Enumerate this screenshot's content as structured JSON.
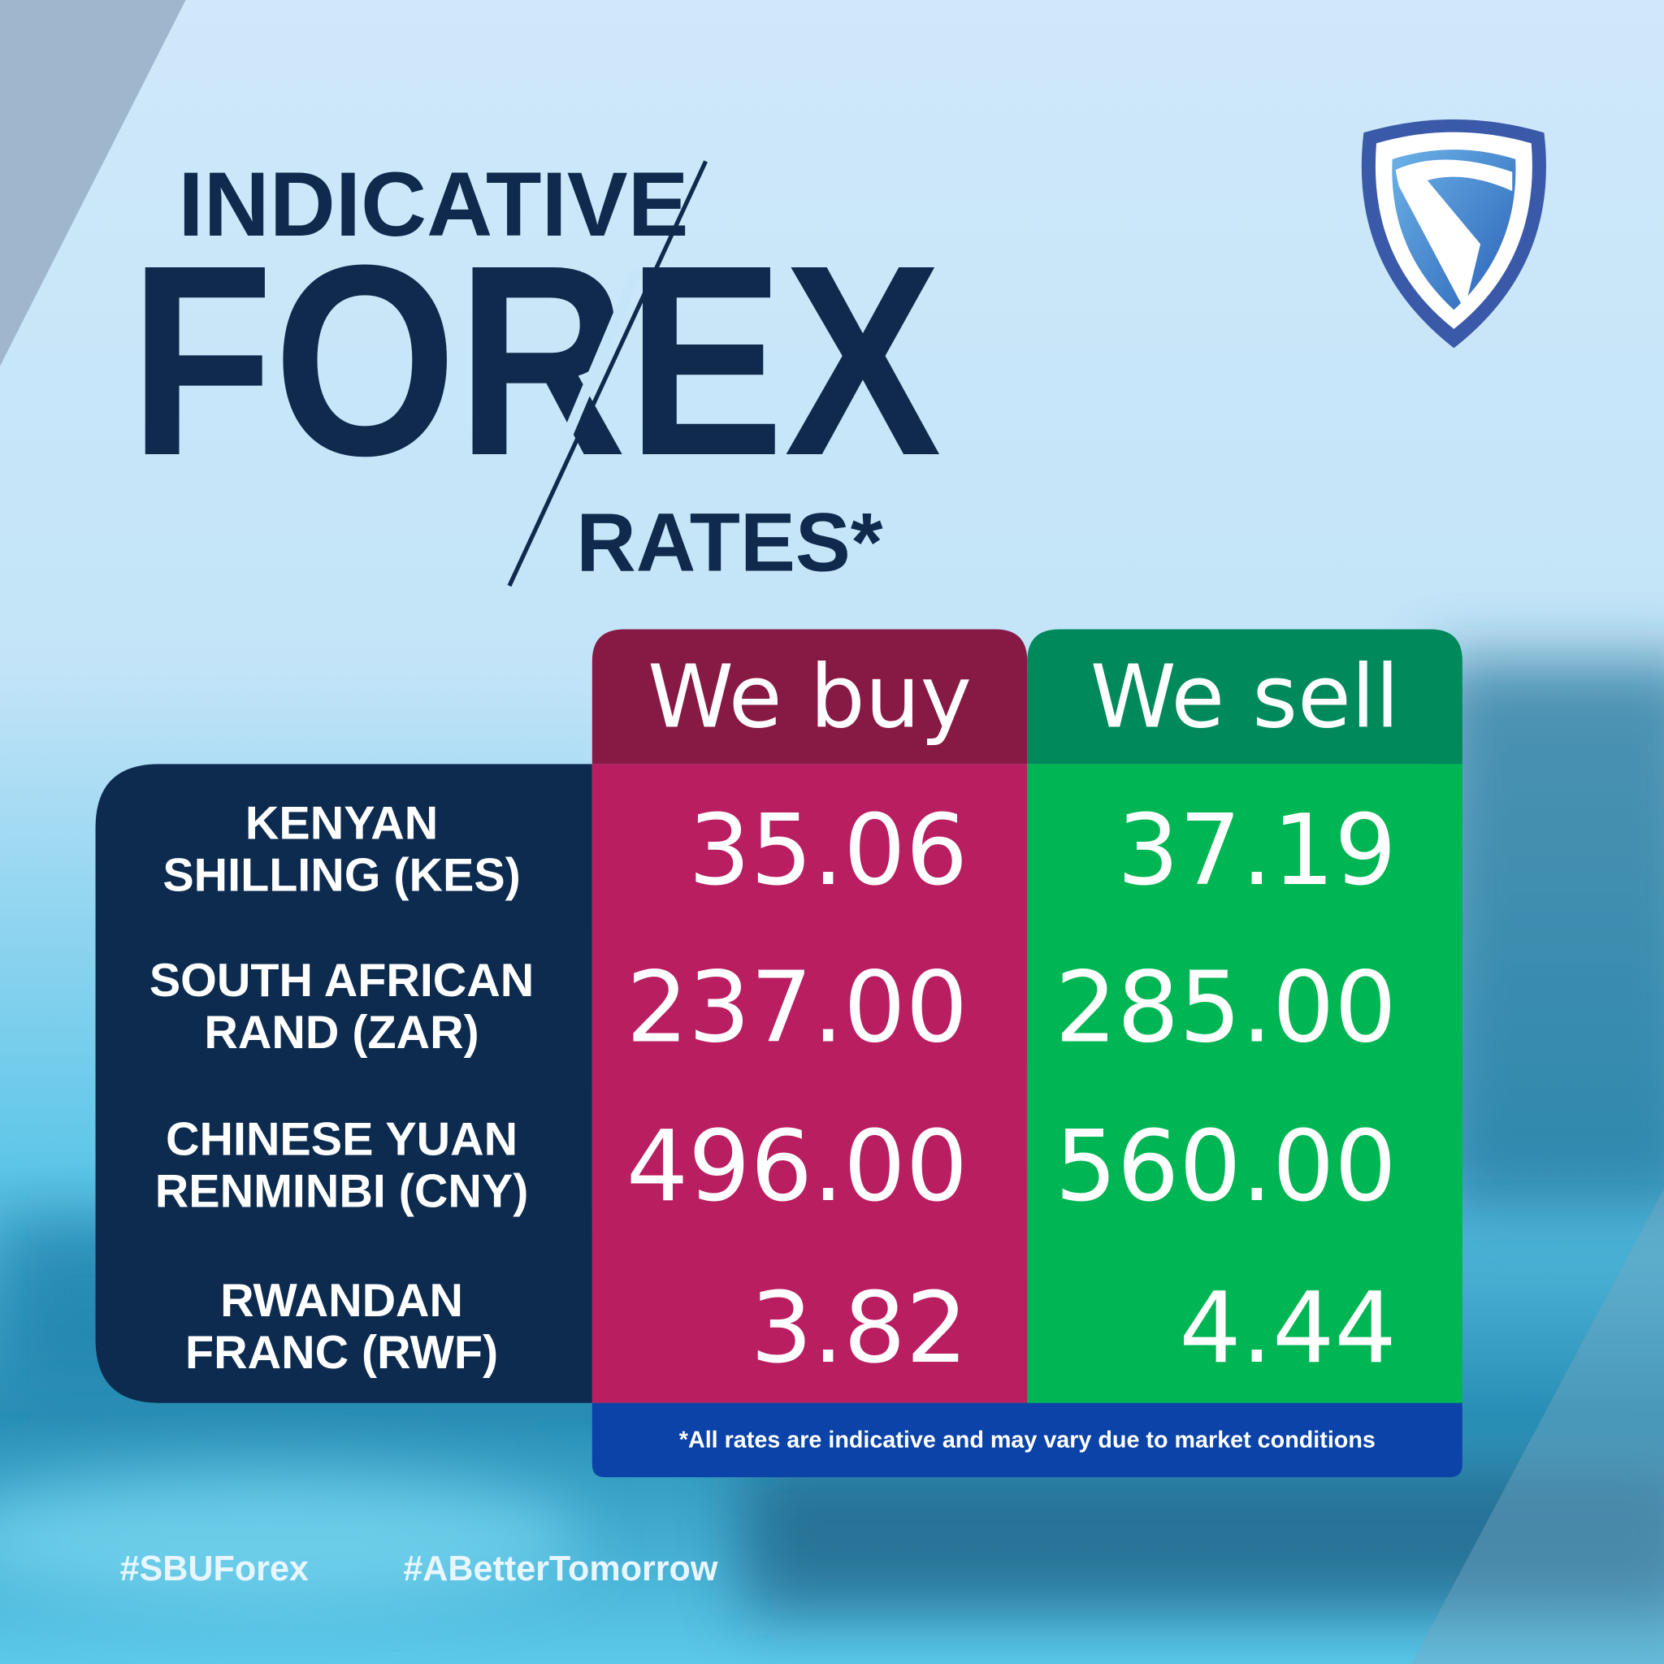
{
  "header": {
    "title": [
      "INDICATIVE",
      "FOREX",
      "RATES*"
    ]
  },
  "table": {
    "columns": [
      "We buy",
      "We sell"
    ],
    "rows": [
      {
        "label": [
          "KENYAN",
          "SHILLING (KES)"
        ],
        "buy": "35.06",
        "sell": "37.19"
      },
      {
        "label": [
          "SOUTH AFRICAN",
          "RAND (ZAR)"
        ],
        "buy": "237.00",
        "sell": "285.00"
      },
      {
        "label": [
          "CHINESE YUAN",
          "RENMINBI (CNY)"
        ],
        "buy": "496.00",
        "sell": "560.00"
      },
      {
        "label": [
          "RWANDAN",
          "FRANC (RWF)"
        ],
        "buy": "3.82",
        "sell": "4.44"
      }
    ],
    "footnote": "*All rates are indicative and may vary due to market conditions"
  },
  "footer": {
    "hashtags": [
      "#SBUForex",
      "#ABetterTomorrow"
    ]
  }
}
